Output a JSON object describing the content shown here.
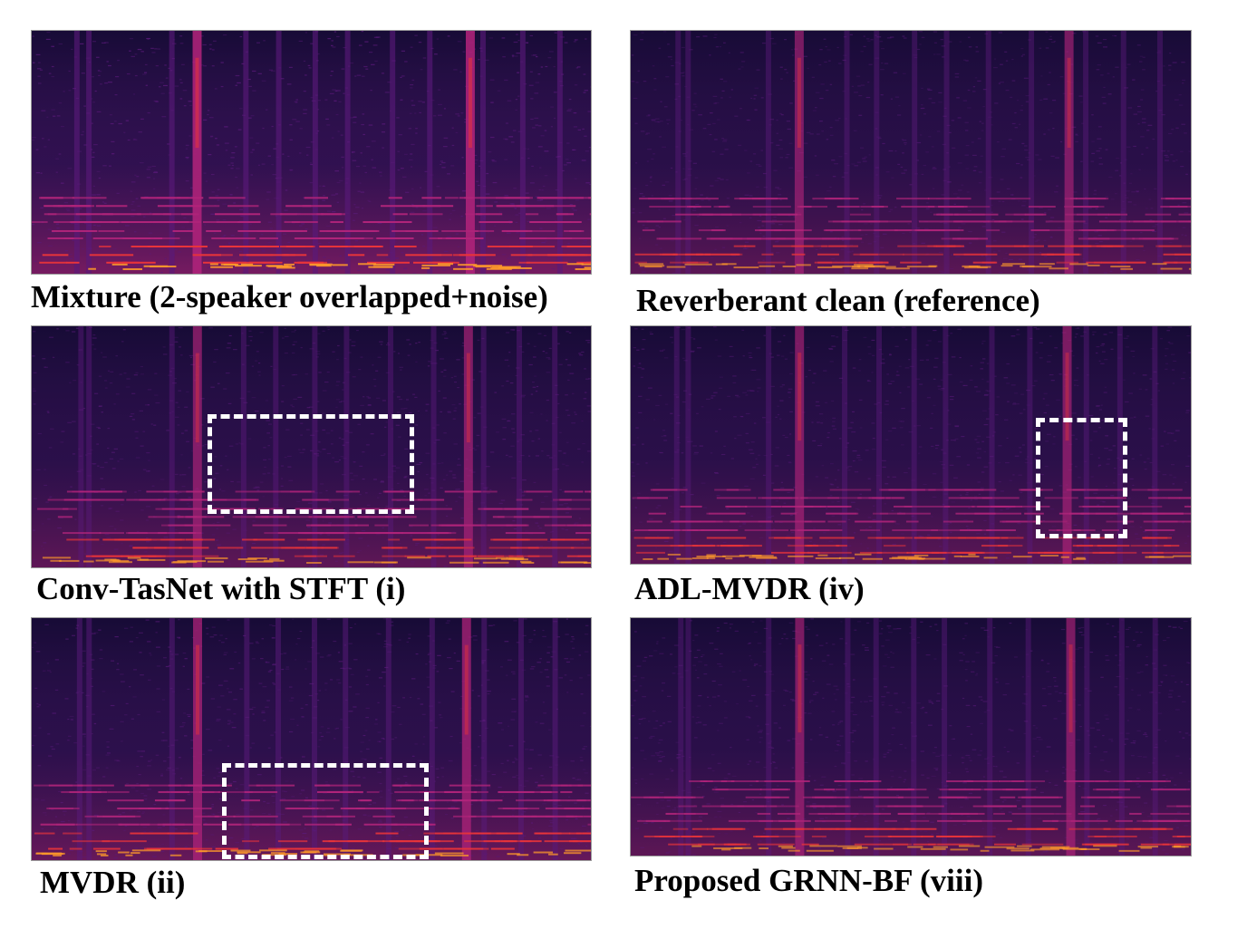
{
  "panels": [
    {
      "id": "mixture",
      "caption": "Mixture (2-speaker overlapped+noise)",
      "brightness": 1.25
    },
    {
      "id": "reference",
      "caption": "Reverberant clean (reference)",
      "brightness": 0.9
    },
    {
      "id": "convtasnet",
      "caption": "Conv-TasNet with STFT (i)",
      "brightness": 0.95
    },
    {
      "id": "adl_mvdr",
      "caption": "ADL-MVDR (iv)",
      "brightness": 0.92
    },
    {
      "id": "mvdr",
      "caption": "MVDR (ii)",
      "brightness": 1.05
    },
    {
      "id": "grnn_bf",
      "caption": "Proposed GRNN-BF (viii)",
      "brightness": 0.92
    }
  ],
  "colors": {
    "background_dark": "#170b36",
    "mid_purple": "#5a1a7a",
    "magenta": "#b0247a",
    "red": "#e8343a",
    "orange": "#ff9a2a",
    "highlight_box": "#ffffff"
  }
}
